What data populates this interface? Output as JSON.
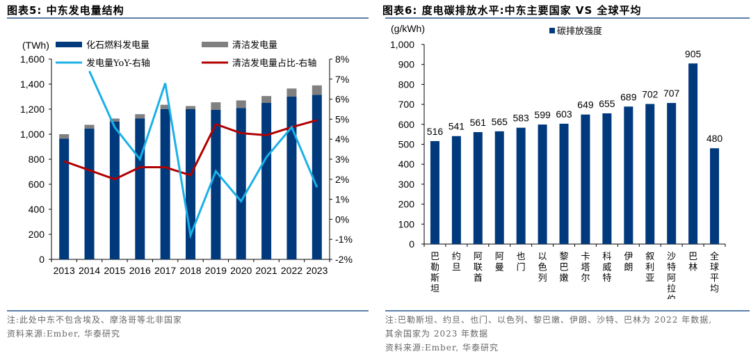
{
  "colors": {
    "fossil": "#003A7D",
    "clean": "#808080",
    "yoy_line": "#1AB0E8",
    "clean_share_line": "#B00000",
    "emission_bar": "#003A7D",
    "rule": "#5B7FA8"
  },
  "left": {
    "title": "图表5:  中东发电量结构",
    "note": "注:此处中东不包含埃及、摩洛哥等北非国家",
    "source": "资料来源:Ember, 华泰研究"
  },
  "right": {
    "title": "图表6:  度电碳排放水平:中东主要国家 VS 全球平均",
    "note_line1": "注:巴勒斯坦、约旦、也门、以色列、黎巴嫩、伊朗、沙特、巴林为 2022 年数据,",
    "note_line2": "其余国家为 2023 年数据",
    "source": "资料来源:Ember, 华泰研究"
  },
  "chart_data": [
    {
      "type": "bar",
      "stacked": true,
      "title": "中东发电量结构",
      "categories": [
        "2013",
        "2014",
        "2015",
        "2016",
        "2017",
        "2018",
        "2019",
        "2020",
        "2021",
        "2022",
        "2023"
      ],
      "ylabel": "(TWh)",
      "ylim": [
        0,
        1600
      ],
      "yticks": [
        0,
        200,
        400,
        600,
        800,
        1000,
        1200,
        1400,
        1600
      ],
      "ytick_labels": [
        "0",
        "200",
        "400",
        "600",
        "800",
        "1,000",
        "1,200",
        "1,400",
        "1,600"
      ],
      "y2lim": [
        -2,
        8
      ],
      "y2ticks": [
        -2,
        -1,
        0,
        1,
        2,
        3,
        4,
        5,
        6,
        7,
        8
      ],
      "y2tick_labels": [
        "-2%",
        "-1%",
        "0%",
        "1%",
        "2%",
        "3%",
        "4%",
        "5%",
        "6%",
        "7%",
        "8%"
      ],
      "grid": false,
      "legend_position": "top",
      "series": [
        {
          "name": "化石燃料发电量",
          "kind": "bar",
          "axis": "left",
          "values": [
            965,
            1045,
            1100,
            1125,
            1200,
            1200,
            1195,
            1210,
            1250,
            1300,
            1315
          ]
        },
        {
          "name": "清洁发电量",
          "kind": "bar",
          "axis": "left",
          "values": [
            35,
            30,
            25,
            35,
            35,
            25,
            60,
            60,
            55,
            65,
            75
          ]
        },
        {
          "name": "发电量YoY-右轴",
          "kind": "line",
          "axis": "right",
          "values": [
            null,
            7.4,
            4.6,
            3.0,
            6.8,
            -0.8,
            2.4,
            0.9,
            3.1,
            4.6,
            1.6
          ]
        },
        {
          "name": "清洁发电量占比-右轴",
          "kind": "line",
          "axis": "right",
          "values": [
            2.9,
            2.45,
            2.0,
            2.6,
            2.6,
            2.2,
            4.75,
            4.3,
            4.2,
            4.6,
            4.95
          ]
        }
      ]
    },
    {
      "type": "bar",
      "title": "度电碳排放水平:中东主要国家 VS 全球平均",
      "categories": [
        "巴勒斯坦",
        "约旦",
        "阿联酋",
        "阿曼",
        "也门",
        "以色列",
        "黎巴嫩",
        "卡塔尔",
        "科威特",
        "伊朗",
        "叙利亚",
        "沙特阿拉伯",
        "巴林",
        "全球平均"
      ],
      "ylabel": "(g/kWh)",
      "ylim": [
        0,
        1000
      ],
      "yticks": [
        0,
        100,
        200,
        300,
        400,
        500,
        600,
        700,
        800,
        900,
        1000
      ],
      "ytick_labels": [
        "0",
        "100",
        "200",
        "300",
        "400",
        "500",
        "600",
        "700",
        "800",
        "900",
        "1,000"
      ],
      "grid": false,
      "legend_position": "top",
      "series": [
        {
          "name": "碳排放强度",
          "values": [
            516,
            541,
            561,
            565,
            583,
            599,
            603,
            649,
            655,
            689,
            702,
            707,
            905,
            480
          ]
        }
      ]
    }
  ]
}
